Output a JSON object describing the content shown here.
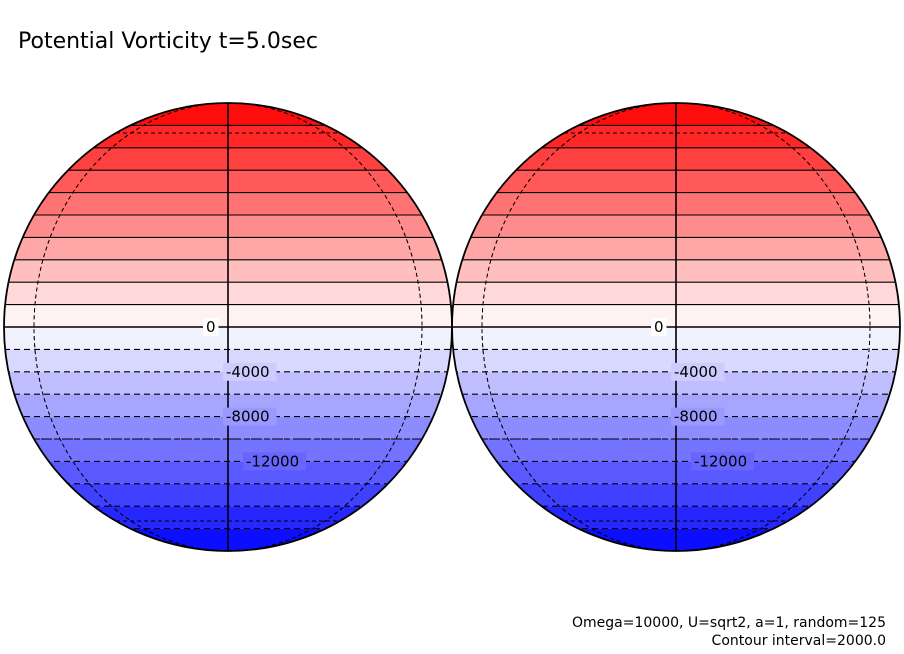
{
  "chart_data": {
    "type": "filled-contour-map",
    "title": "Potential Vorticity t=5.0sec",
    "projection": "orthographic",
    "panels": [
      {
        "name": "hemisphere-left",
        "contour_labels": [
          {
            "value": 0,
            "text": "0"
          },
          {
            "value": -4000,
            "text": "-4000"
          },
          {
            "value": -8000,
            "text": "-8000"
          },
          {
            "value": -12000,
            "text": "-12000"
          }
        ]
      },
      {
        "name": "hemisphere-right",
        "contour_labels": [
          {
            "value": 0,
            "text": "0"
          },
          {
            "value": -4000,
            "text": "-4000"
          },
          {
            "value": -8000,
            "text": "-8000"
          },
          {
            "value": -12000,
            "text": "-12000"
          }
        ]
      }
    ],
    "contour_levels": [
      -18000,
      -16000,
      -14000,
      -12000,
      -10000,
      -8000,
      -6000,
      -4000,
      -2000,
      0,
      2000,
      4000,
      6000,
      8000,
      10000,
      12000,
      14000,
      16000,
      18000
    ],
    "contour_interval": 2000.0,
    "value_range": [
      -20000,
      20000
    ],
    "negative_contours_dashed": true,
    "colormap": {
      "negative": "#0000ff",
      "zero": "#ffffff",
      "positive": "#ff0000"
    },
    "graticule": {
      "meridians_deg": [
        -60,
        0,
        60
      ],
      "parallels_deg": [
        -60,
        -30,
        0,
        30,
        60
      ]
    },
    "footer": {
      "params": "Omega=10000, U=sqrt2, a=1, random=125",
      "contour_interval_label": "Contour interval=2000.0"
    }
  }
}
